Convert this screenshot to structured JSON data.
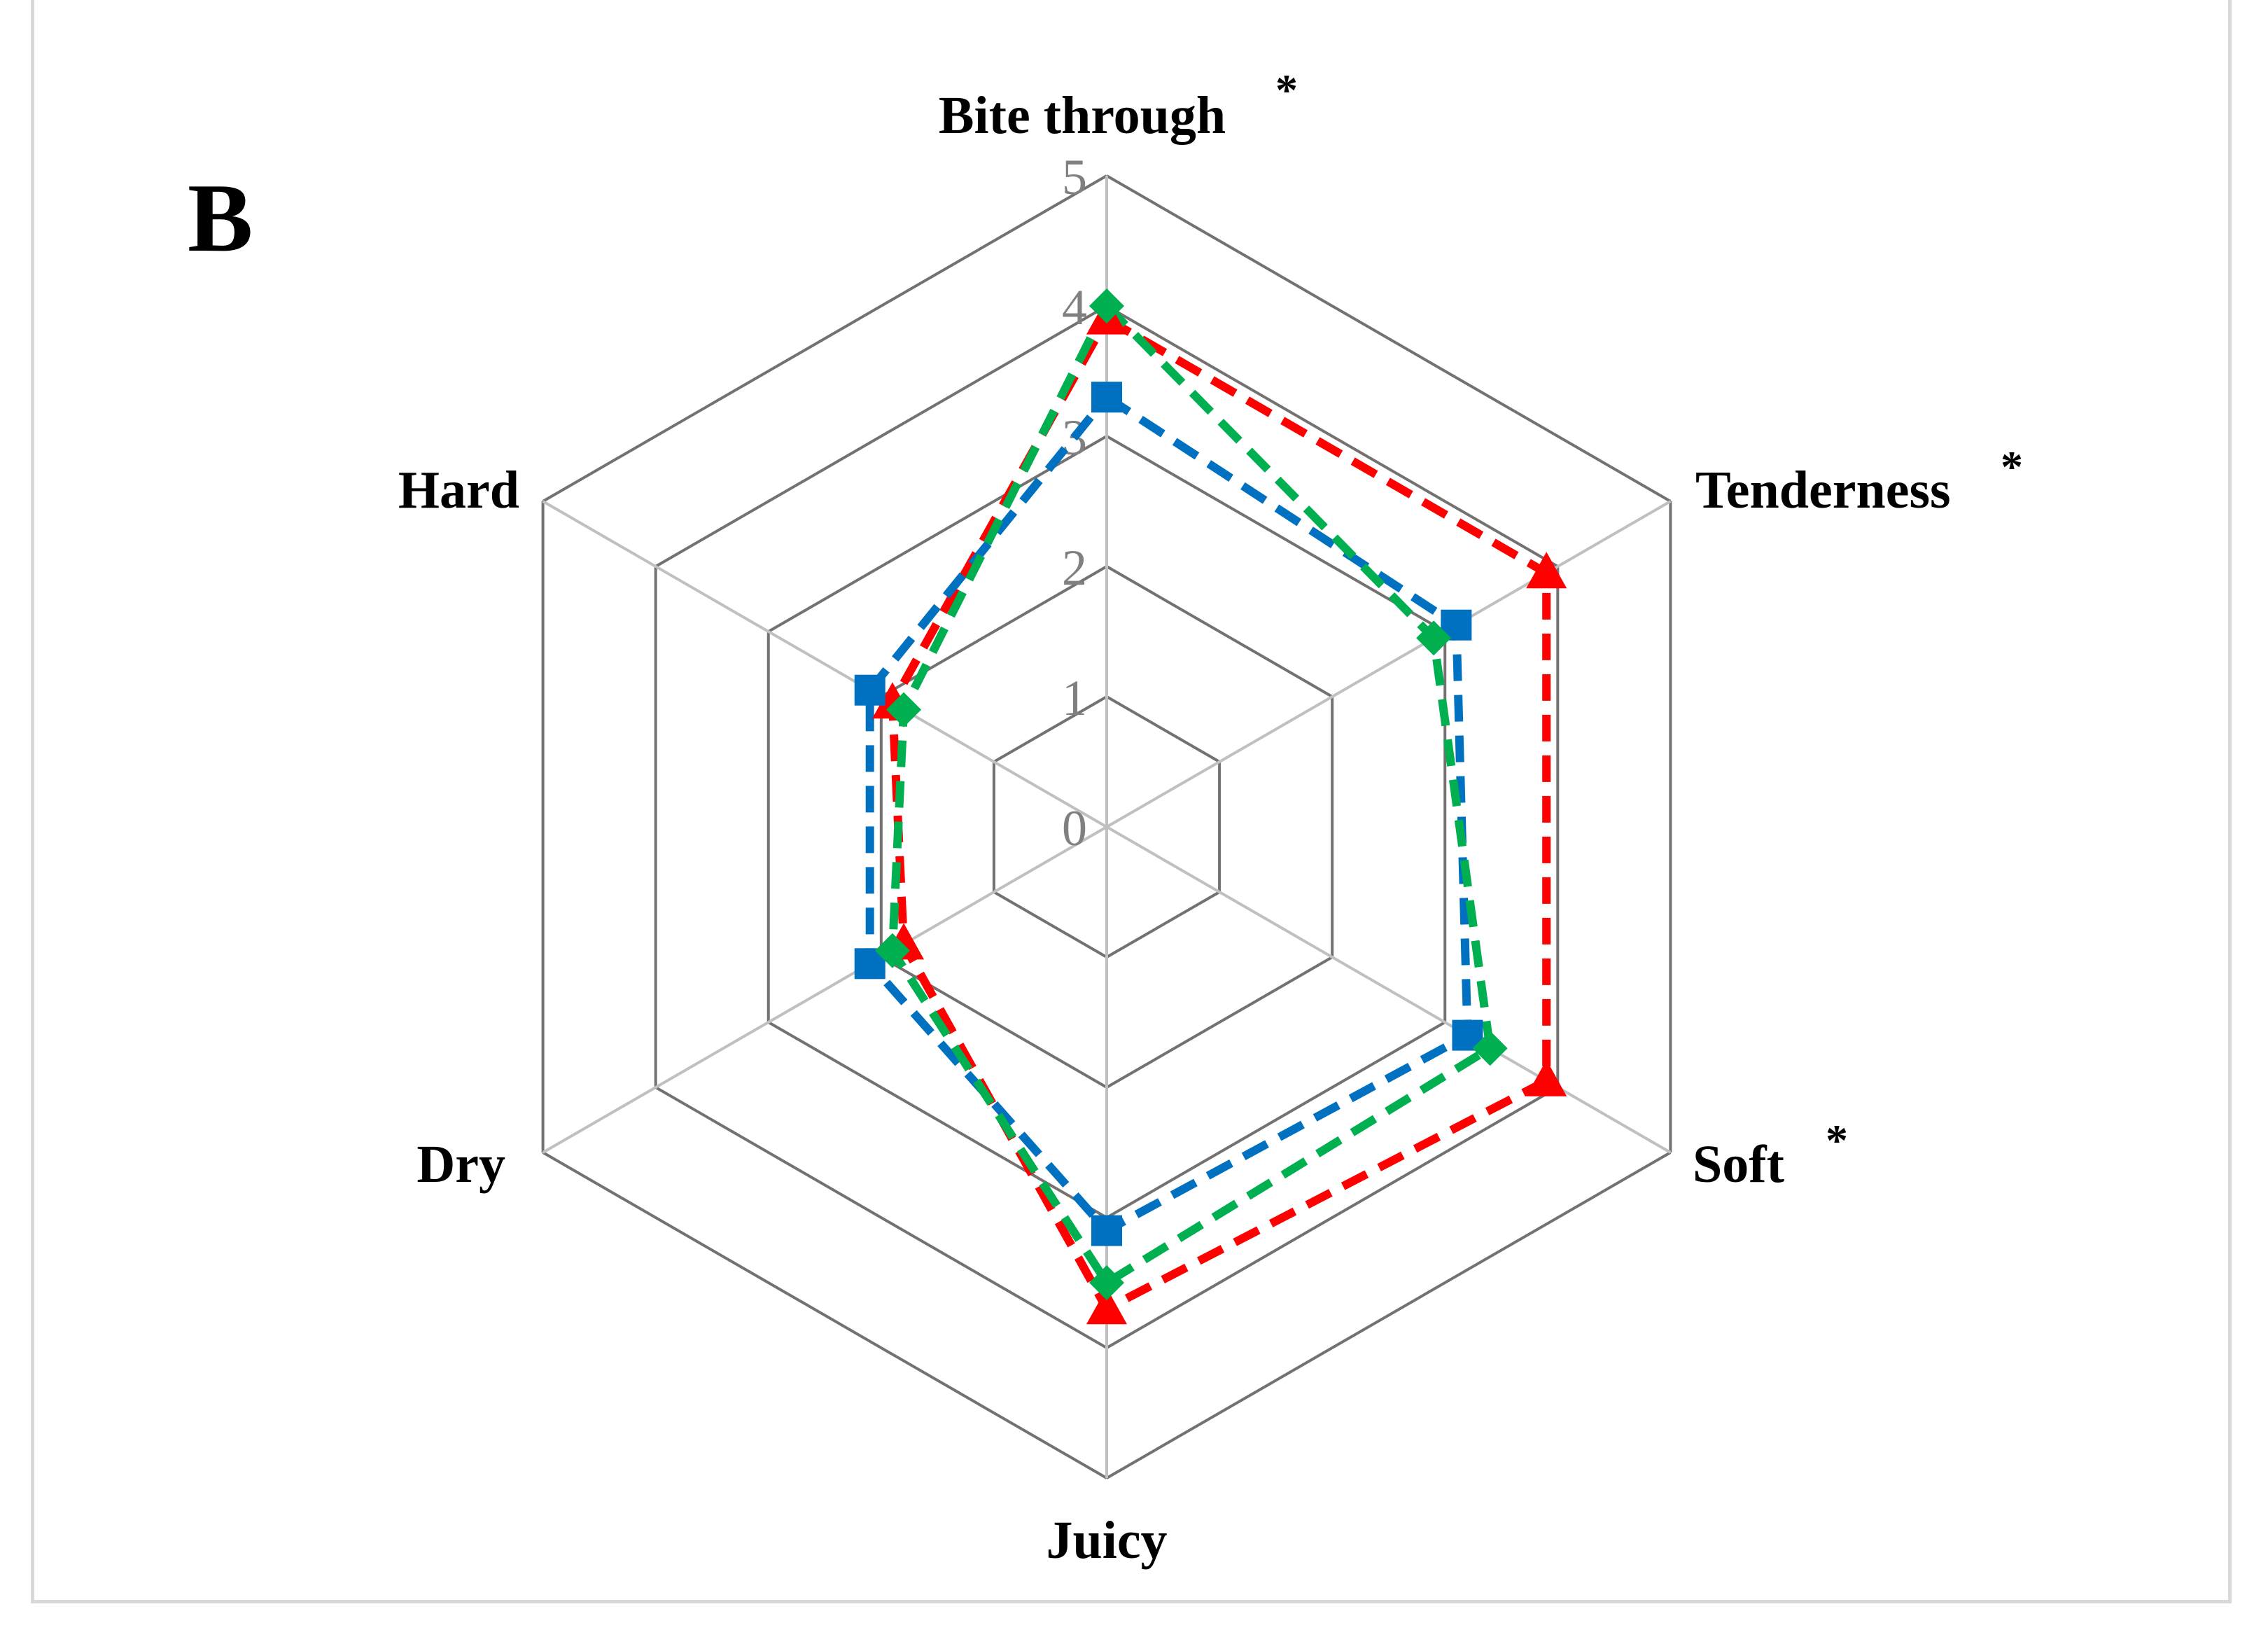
{
  "panel_label": "B",
  "colors": {
    "grid_dark": "#767171",
    "grid_light": "#c0c0c0",
    "series": [
      "#ff0000",
      "#0070c0",
      "#00b050"
    ]
  },
  "chart_data": {
    "type": "radar",
    "title": "",
    "axes": [
      {
        "label": "Bite through",
        "marker": "*"
      },
      {
        "label": "Tenderness",
        "marker": "*"
      },
      {
        "label": "Soft",
        "marker": "*"
      },
      {
        "label": "Juicy",
        "marker": ""
      },
      {
        "label": "Dry",
        "marker": ""
      },
      {
        "label": "Hard",
        "marker": ""
      }
    ],
    "ticks": [
      "0",
      "1",
      "2",
      "3",
      "4",
      "5"
    ],
    "range": [
      0,
      5
    ],
    "grid": true,
    "series": [
      {
        "marker": "triangle",
        "color": "#ff0000",
        "values": [
          3.9,
          3.9,
          3.9,
          3.7,
          1.8,
          1.9
        ]
      },
      {
        "marker": "square",
        "color": "#0070c0",
        "values": [
          3.3,
          3.1,
          3.2,
          3.1,
          2.1,
          2.1
        ]
      },
      {
        "marker": "diamond",
        "color": "#00b050",
        "values": [
          4.0,
          2.9,
          3.4,
          3.5,
          1.9,
          1.8
        ]
      }
    ]
  }
}
